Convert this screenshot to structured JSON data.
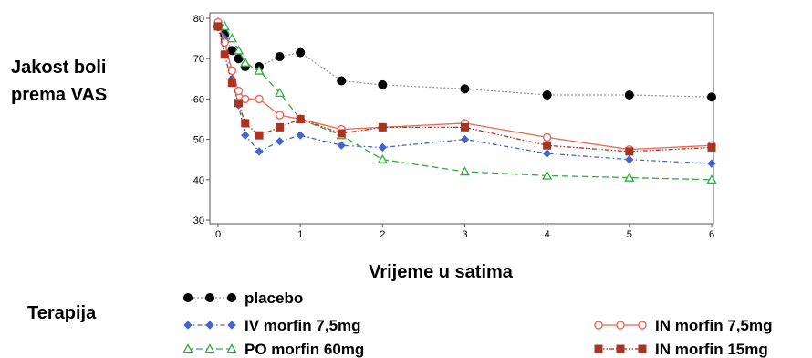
{
  "chart_data": {
    "type": "line",
    "title": "",
    "ylabel_lines": [
      "Jakost boli",
      "prema VAS"
    ],
    "xlabel": "Vrijeme u satima",
    "xlim": [
      0,
      6
    ],
    "ylim": [
      30,
      80
    ],
    "xticks": [
      0,
      1,
      2,
      3,
      4,
      5,
      6
    ],
    "yticks": [
      30,
      40,
      50,
      60,
      70,
      80
    ],
    "grid": false,
    "legend_title": "Terapija",
    "legend_position": "bottom",
    "series": [
      {
        "name": "placebo",
        "color": "#000000",
        "marker": "filled-circle",
        "line_style": "dotted-gray",
        "x": [
          0,
          0.08,
          0.17,
          0.25,
          0.33,
          0.5,
          0.75,
          1,
          1.5,
          2,
          3,
          4,
          5,
          6
        ],
        "y": [
          78,
          76,
          72,
          70,
          68,
          68,
          70.5,
          71.5,
          64.5,
          63.5,
          62.5,
          61,
          61,
          60.5
        ]
      },
      {
        "name": "IV morfin 7,5mg",
        "color": "#4466cc",
        "marker": "diamond",
        "line_style": "dash-dot",
        "x": [
          0,
          0.08,
          0.17,
          0.25,
          0.33,
          0.5,
          0.75,
          1,
          1.5,
          2,
          3,
          4,
          5,
          6
        ],
        "y": [
          79,
          75,
          65,
          58.5,
          51,
          47,
          49.5,
          51,
          48.5,
          48,
          50,
          46.5,
          45,
          44
        ]
      },
      {
        "name": "PO morfin 60mg",
        "color": "#33aa44",
        "marker": "triangle",
        "line_style": "dashed",
        "x": [
          0,
          0.08,
          0.17,
          0.25,
          0.33,
          0.5,
          0.75,
          1,
          1.5,
          2,
          3,
          4,
          5,
          6
        ],
        "y": [
          79,
          78,
          75,
          72,
          69,
          67,
          61.5,
          55,
          51,
          45,
          42,
          41,
          40.5,
          40
        ]
      },
      {
        "name": "IN morfin 7,5mg",
        "color": "#ee6655",
        "marker": "open-circle",
        "line_style": "solid",
        "x": [
          0,
          0.08,
          0.17,
          0.25,
          0.33,
          0.5,
          0.75,
          1,
          1.5,
          2,
          3,
          4,
          5,
          6
        ],
        "y": [
          79,
          74,
          67,
          62,
          60,
          60,
          56,
          55,
          52.5,
          53,
          54,
          50.5,
          47.5,
          48.5
        ]
      },
      {
        "name": "IN morfin 15mg",
        "color": "#aa3322",
        "marker": "filled-square",
        "line_style": "dash-dot-dot",
        "x": [
          0,
          0.08,
          0.17,
          0.25,
          0.33,
          0.5,
          0.75,
          1,
          1.5,
          2,
          3,
          4,
          5,
          6
        ],
        "y": [
          78,
          71,
          64,
          59,
          54,
          51,
          53,
          55,
          51.5,
          53,
          53,
          48.5,
          47,
          48
        ]
      }
    ]
  }
}
